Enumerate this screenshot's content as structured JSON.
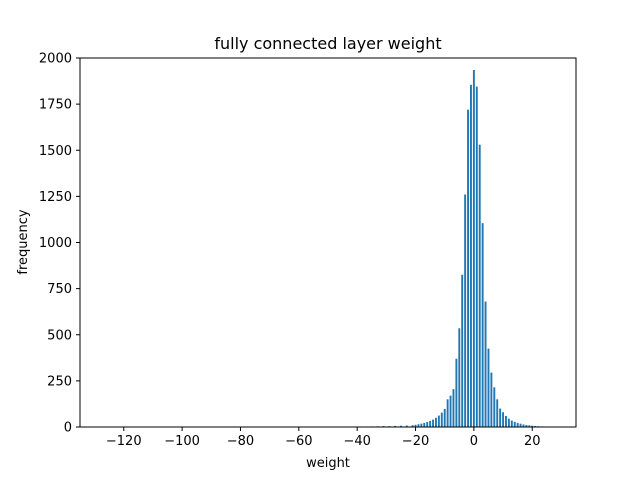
{
  "chart_data": {
    "type": "bar",
    "title": "fully connected layer weight",
    "xlabel": "weight",
    "ylabel": "frequency",
    "xlim": [
      -135,
      35
    ],
    "ylim": [
      0,
      2000
    ],
    "x_ticks": [
      -120,
      -100,
      -80,
      -60,
      -40,
      -20,
      0,
      20
    ],
    "x_tick_labels": [
      "−120",
      "−100",
      "−80",
      "−60",
      "−40",
      "−20",
      "0",
      "20"
    ],
    "y_ticks": [
      0,
      250,
      500,
      750,
      1000,
      1250,
      1500,
      1750,
      2000
    ],
    "y_tick_labels": [
      "0",
      "250",
      "500",
      "750",
      "1000",
      "1250",
      "1500",
      "1750",
      "2000"
    ],
    "bar_color": "#1f77b4",
    "grid": false,
    "legend": "none",
    "x": [
      -128,
      -41,
      -39,
      -37,
      -35,
      -33,
      -31,
      -29,
      -27,
      -25,
      -23,
      -21,
      -20,
      -19,
      -18,
      -17,
      -16,
      -15,
      -14,
      -13,
      -12,
      -11,
      -10,
      -9,
      -8,
      -7,
      -6,
      -5,
      -4,
      -3,
      -2,
      -1,
      0,
      1,
      2,
      3,
      4,
      5,
      6,
      7,
      8,
      9,
      10,
      11,
      12,
      13,
      14,
      15,
      16,
      17,
      18,
      19,
      20,
      21,
      22,
      23,
      24,
      25,
      27,
      29,
      31
    ],
    "values": [
      1,
      2,
      3,
      2,
      3,
      4,
      5,
      5,
      6,
      7,
      8,
      10,
      12,
      15,
      18,
      22,
      27,
      33,
      40,
      50,
      62,
      78,
      98,
      150,
      170,
      205,
      370,
      535,
      825,
      1260,
      1720,
      1855,
      1935,
      1845,
      1530,
      1105,
      680,
      425,
      295,
      215,
      150,
      100,
      80,
      60,
      45,
      35,
      28,
      22,
      18,
      14,
      11,
      9,
      7,
      5,
      4,
      3,
      3,
      2,
      2,
      1,
      1
    ]
  }
}
